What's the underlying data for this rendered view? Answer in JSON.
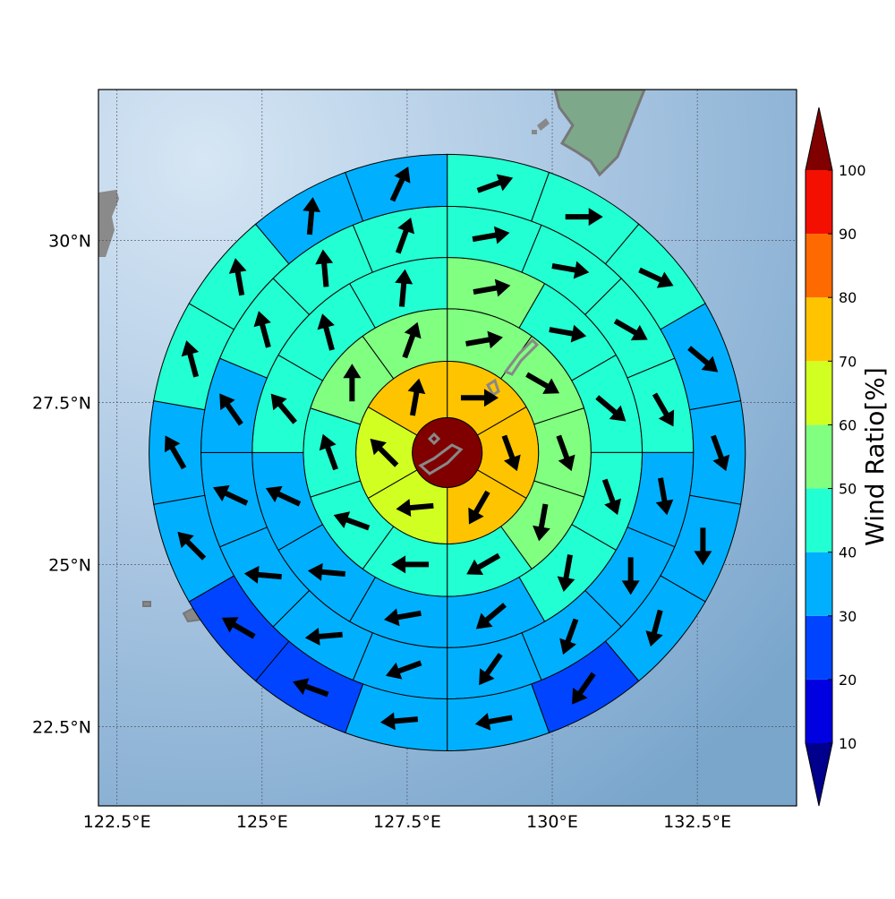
{
  "chart_data": {
    "type": "polar-grid-map",
    "xlim": [
      122.18,
      134.21
    ],
    "ylim": [
      21.28,
      32.33
    ],
    "xticks": [
      {
        "value": 122.5,
        "label": "122.5°E"
      },
      {
        "value": 125,
        "label": "125°E"
      },
      {
        "value": 127.5,
        "label": "127.5°E"
      },
      {
        "value": 130,
        "label": "130°E"
      },
      {
        "value": 132.5,
        "label": "132.5°E"
      }
    ],
    "yticks": [
      {
        "value": 22.5,
        "label": "22.5°N"
      },
      {
        "value": 25,
        "label": "25°N"
      },
      {
        "value": 27.5,
        "label": "27.5°N"
      },
      {
        "value": 30,
        "label": "30°N"
      }
    ],
    "grid": true,
    "center": [
      128.19,
      26.73
    ],
    "rings": [
      {
        "r": [
          0,
          0.54
        ],
        "values": [
          105
        ]
      },
      {
        "r": [
          0.54,
          1.41
        ],
        "values": [
          75,
          75,
          75,
          65,
          65,
          75
        ],
        "directions": [
          90,
          160,
          210,
          265,
          315,
          10
        ]
      },
      {
        "r": [
          1.41,
          2.22
        ],
        "values": [
          55,
          55,
          55,
          55,
          45,
          45,
          45,
          45,
          55,
          55
        ],
        "directions": [
          80,
          120,
          160,
          190,
          240,
          270,
          290,
          340,
          0,
          20
        ]
      },
      {
        "r": [
          2.22,
          3.01
        ],
        "values": [
          55,
          45,
          45,
          45,
          45,
          35,
          35,
          35,
          35,
          45,
          45,
          45
        ],
        "directions": [
          80,
          100,
          130,
          160,
          190,
          230,
          260,
          275,
          295,
          320,
          345,
          5
        ]
      },
      {
        "r": [
          3.01,
          3.8
        ],
        "values": [
          45,
          45,
          45,
          45,
          35,
          35,
          35,
          35,
          35,
          35,
          35,
          35,
          35,
          45,
          45,
          45
        ],
        "directions": [
          80,
          100,
          120,
          150,
          170,
          180,
          200,
          215,
          250,
          265,
          275,
          295,
          325,
          345,
          355,
          20
        ]
      },
      {
        "r": [
          3.8,
          4.6
        ],
        "values": [
          45,
          45,
          45,
          35,
          35,
          35,
          35,
          25,
          35,
          35,
          25,
          25,
          35,
          35,
          45,
          45,
          35,
          35
        ],
        "directions": [
          70,
          90,
          115,
          130,
          160,
          180,
          195,
          215,
          260,
          265,
          290,
          300,
          315,
          330,
          345,
          350,
          5,
          25
        ]
      }
    ],
    "colorbar": {
      "label": "Wind Ratio[%]",
      "levels": [
        10,
        20,
        30,
        40,
        50,
        60,
        70,
        80,
        90,
        100
      ],
      "colors": [
        "#0000e0",
        "#0044ff",
        "#00b0ff",
        "#22ffd2",
        "#80ff80",
        "#d2ff22",
        "#ffc400",
        "#ff6a00",
        "#f41000"
      ],
      "under_color": "#00008c",
      "over_color": "#800000"
    }
  }
}
